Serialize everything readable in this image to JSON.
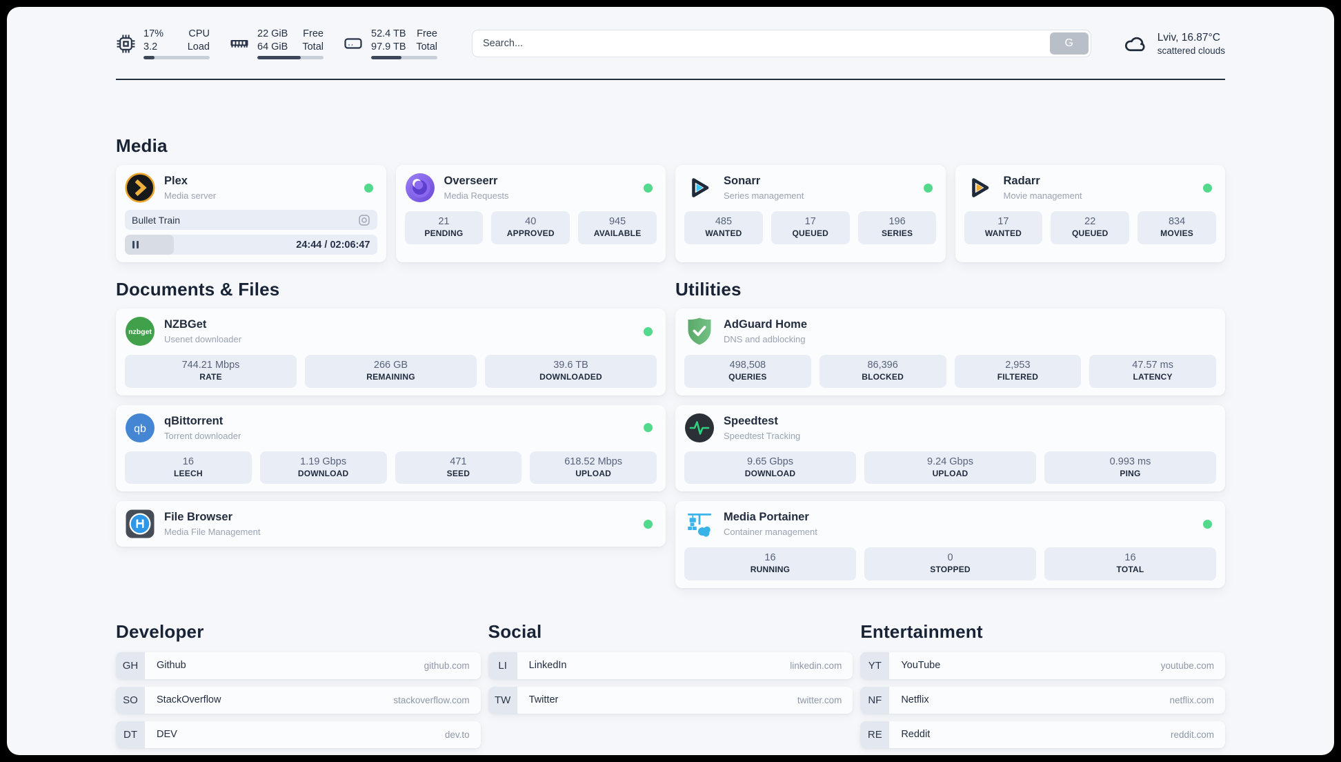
{
  "colors": {
    "status_online": "#53d98b",
    "page_bg": "#f5f7fa",
    "stat_box_bg": "#e9eef6",
    "text_dark": "#222d3f"
  },
  "header": {
    "cpu": {
      "value_top": "17%",
      "value_bottom": "3.2",
      "label_top": "CPU",
      "label_bottom": "Load",
      "progress": 17
    },
    "ram": {
      "value_top": "22 GiB",
      "value_bottom": "64 GiB",
      "label_top": "Free",
      "label_bottom": "Total",
      "progress": 66
    },
    "disk": {
      "value_top": "52.4 TB",
      "value_bottom": "97.9 TB",
      "label_top": "Free",
      "label_bottom": "Total",
      "progress": 46
    },
    "search": {
      "placeholder": "Search...",
      "button_label": "G"
    },
    "weather": {
      "line1": "Lviv, 16.87°C",
      "line2": "scattered clouds"
    }
  },
  "media": {
    "title": "Media",
    "plex": {
      "name": "Plex",
      "desc": "Media server",
      "now_playing": "Bullet Train",
      "time": "24:44 / 02:06:47",
      "progress": 19.5
    },
    "overseerr": {
      "name": "Overseerr",
      "desc": "Media Requests",
      "stats": [
        {
          "value": "21",
          "label": "PENDING"
        },
        {
          "value": "40",
          "label": "APPROVED"
        },
        {
          "value": "945",
          "label": "AVAILABLE"
        }
      ]
    },
    "sonarr": {
      "name": "Sonarr",
      "desc": "Series management",
      "stats": [
        {
          "value": "485",
          "label": "WANTED"
        },
        {
          "value": "17",
          "label": "QUEUED"
        },
        {
          "value": "196",
          "label": "SERIES"
        }
      ]
    },
    "radarr": {
      "name": "Radarr",
      "desc": "Movie management",
      "stats": [
        {
          "value": "17",
          "label": "WANTED"
        },
        {
          "value": "22",
          "label": "QUEUED"
        },
        {
          "value": "834",
          "label": "MOVIES"
        }
      ]
    }
  },
  "documents": {
    "title": "Documents & Files",
    "nzbget": {
      "name": "NZBGet",
      "desc": "Usenet downloader",
      "stats": [
        {
          "value": "744.21 Mbps",
          "label": "RATE"
        },
        {
          "value": "266 GB",
          "label": "REMAINING"
        },
        {
          "value": "39.6 TB",
          "label": "DOWNLOADED"
        }
      ]
    },
    "qbittorrent": {
      "name": "qBittorrent",
      "desc": "Torrent downloader",
      "stats": [
        {
          "value": "16",
          "label": "LEECH"
        },
        {
          "value": "1.19 Gbps",
          "label": "DOWNLOAD"
        },
        {
          "value": "471",
          "label": "SEED"
        },
        {
          "value": "618.52 Mbps",
          "label": "UPLOAD"
        }
      ]
    },
    "filebrowser": {
      "name": "File Browser",
      "desc": "Media File Management"
    }
  },
  "utilities": {
    "title": "Utilities",
    "adguard": {
      "name": "AdGuard Home",
      "desc": "DNS and adblocking",
      "stats": [
        {
          "value": "498,508",
          "label": "QUERIES"
        },
        {
          "value": "86,396",
          "label": "BLOCKED"
        },
        {
          "value": "2,953",
          "label": "FILTERED"
        },
        {
          "value": "47.57 ms",
          "label": "LATENCY"
        }
      ]
    },
    "speedtest": {
      "name": "Speedtest",
      "desc": "Speedtest Tracking",
      "stats": [
        {
          "value": "9.65 Gbps",
          "label": "DOWNLOAD"
        },
        {
          "value": "9.24 Gbps",
          "label": "UPLOAD"
        },
        {
          "value": "0.993 ms",
          "label": "PING"
        }
      ]
    },
    "portainer": {
      "name": "Media Portainer",
      "desc": "Container management",
      "stats": [
        {
          "value": "16",
          "label": "RUNNING"
        },
        {
          "value": "0",
          "label": "STOPPED"
        },
        {
          "value": "16",
          "label": "TOTAL"
        }
      ]
    }
  },
  "links": {
    "developer": {
      "title": "Developer",
      "items": [
        {
          "abbr": "GH",
          "name": "Github",
          "url": "github.com"
        },
        {
          "abbr": "SO",
          "name": "StackOverflow",
          "url": "stackoverflow.com"
        },
        {
          "abbr": "DT",
          "name": "DEV",
          "url": "dev.to"
        }
      ]
    },
    "social": {
      "title": "Social",
      "items": [
        {
          "abbr": "LI",
          "name": "LinkedIn",
          "url": "linkedin.com"
        },
        {
          "abbr": "TW",
          "name": "Twitter",
          "url": "twitter.com"
        }
      ]
    },
    "entertainment": {
      "title": "Entertainment",
      "items": [
        {
          "abbr": "YT",
          "name": "YouTube",
          "url": "youtube.com"
        },
        {
          "abbr": "NF",
          "name": "Netflix",
          "url": "netflix.com"
        },
        {
          "abbr": "RE",
          "name": "Reddit",
          "url": "reddit.com"
        }
      ]
    }
  }
}
